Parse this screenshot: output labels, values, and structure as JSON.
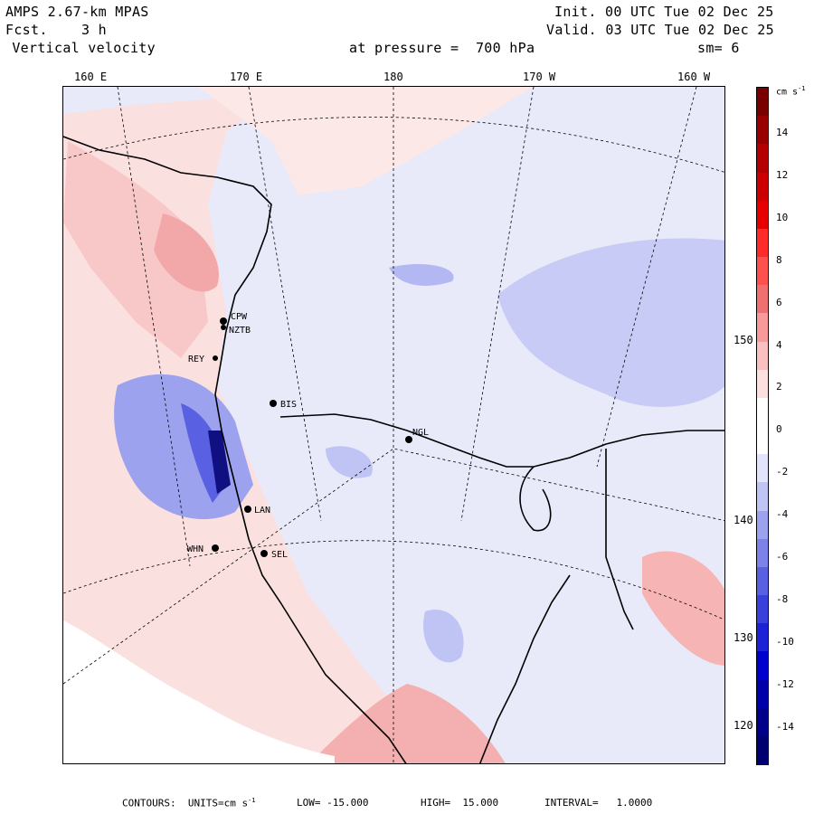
{
  "header": {
    "model": "AMPS 2.67-km MPAS",
    "forecast": "Fcst.    3 h",
    "field": " Vertical velocity",
    "init": "Init. 00 UTC Tue 02 Dec 25",
    "valid": "Valid. 03 UTC Tue 02 Dec 25",
    "level": "at pressure =  700 hPa",
    "smoothing": "sm= 6"
  },
  "longitude_labels": [
    "160 E",
    "170 E",
    "180",
    "170 W",
    "160 W"
  ],
  "latitude_labels": [
    "150 W",
    "140 W",
    "130 W",
    "120 W"
  ],
  "colorbar": {
    "units": "cm s",
    "units_exp": "-1",
    "ticks": [
      "14",
      "12",
      "10",
      "8",
      "6",
      "4",
      "2",
      "0",
      "-2",
      "-4",
      "-6",
      "-8",
      "-10",
      "-12",
      "-14"
    ],
    "colors": [
      "#7a0000",
      "#980000",
      "#b40000",
      "#cc0000",
      "#e60000",
      "#ff2a2a",
      "#ff5050",
      "#f07070",
      "#f89a9a",
      "#f8c0c0",
      "#fce0e0",
      "#ffffff",
      "#ffffff",
      "#e2e4fb",
      "#c0c4f4",
      "#9ca2ee",
      "#7c82e8",
      "#5a60e2",
      "#3a40dc",
      "#1c22d6",
      "#0000cc",
      "#0000a8",
      "#00008a",
      "#000070"
    ]
  },
  "stations": [
    {
      "name": "CPW"
    },
    {
      "name": "NZTB"
    },
    {
      "name": "REY"
    },
    {
      "name": "BIS"
    },
    {
      "name": "NGL"
    },
    {
      "name": "LAN"
    },
    {
      "name": "WHN"
    },
    {
      "name": "SEL"
    }
  ],
  "footer": {
    "contours": "CONTOURS:  UNITS=cm s",
    "units_exp": "-1",
    "low": "LOW= -15.000",
    "high": "HIGH=  15.000",
    "interval": "INTERVAL=   1.0000"
  }
}
